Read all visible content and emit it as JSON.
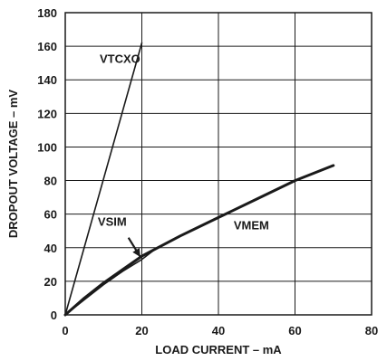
{
  "chart_data": {
    "type": "line",
    "title": "",
    "xlabel": "LOAD CURRENT – mA",
    "ylabel": "DROPOUT VOLTAGE – mV",
    "xlim": [
      0,
      80
    ],
    "ylim": [
      0,
      180
    ],
    "xticks": [
      0,
      20,
      40,
      60,
      80
    ],
    "yticks": [
      0,
      20,
      40,
      60,
      80,
      100,
      120,
      140,
      160,
      180
    ],
    "grid": true,
    "series": [
      {
        "name": "VTCXO",
        "x": [
          0,
          20
        ],
        "y": [
          0,
          162
        ],
        "color": "#1a1a1a",
        "weight": "thin"
      },
      {
        "name": "VSIM",
        "x": [
          0,
          5,
          10,
          15,
          20,
          24
        ],
        "y": [
          0,
          9,
          18,
          26,
          33,
          40
        ],
        "color": "#1a1a1a",
        "weight": "thin"
      },
      {
        "name": "VMEM",
        "x": [
          0,
          5,
          10,
          15,
          20,
          30,
          40,
          50,
          60,
          70
        ],
        "y": [
          0,
          10,
          19,
          27,
          35,
          47,
          58,
          69,
          80,
          89
        ],
        "color": "#1a1a1a",
        "weight": "thick"
      }
    ],
    "annotations": [
      {
        "text": "VTCXO",
        "x": 9,
        "y": 150
      },
      {
        "text": "VSIM",
        "x": 8.5,
        "y": 53
      },
      {
        "text": "VMEM",
        "x": 44,
        "y": 51
      }
    ]
  }
}
